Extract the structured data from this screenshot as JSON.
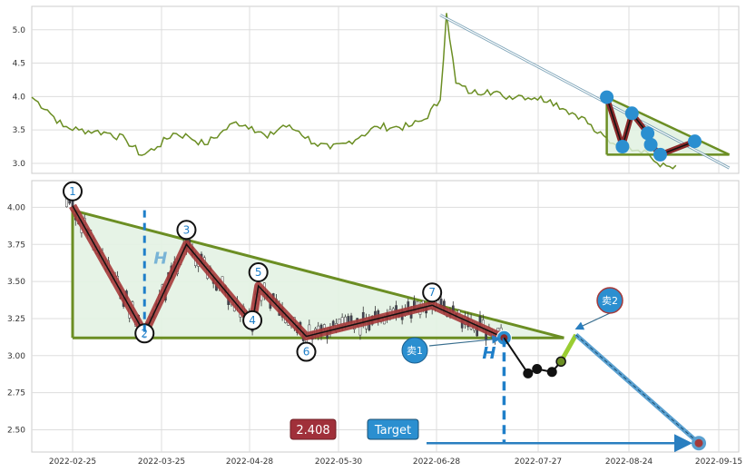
{
  "chart_data": [
    {
      "type": "line",
      "panel": "overview",
      "ylim": [
        2.85,
        5.35
      ],
      "y_ticks": [
        "3.0",
        "3.5",
        "4.0",
        "4.5",
        "5.0"
      ],
      "y_tick_values": [
        3.0,
        3.5,
        4.0,
        4.5,
        5.0
      ],
      "grid": true,
      "series": [
        {
          "color": "#6b8e23",
          "x": [
            0,
            5,
            10,
            15,
            20,
            25,
            30,
            35,
            40,
            45,
            50,
            55,
            60,
            65,
            70,
            75,
            80,
            85,
            90,
            95,
            100,
            105,
            110,
            115,
            120,
            125,
            130,
            132,
            135,
            140,
            145,
            150,
            155,
            160,
            165,
            170,
            175,
            180,
            185,
            190,
            195,
            200,
            205
          ],
          "values": [
            3.99,
            3.8,
            3.55,
            3.5,
            3.48,
            3.45,
            3.35,
            3.12,
            3.25,
            3.45,
            3.4,
            3.28,
            3.45,
            3.62,
            3.55,
            3.38,
            3.57,
            3.48,
            3.3,
            3.22,
            3.3,
            3.42,
            3.55,
            3.54,
            3.55,
            3.66,
            3.95,
            5.25,
            4.2,
            4.05,
            4.1,
            4.0,
            4.02,
            3.98,
            3.95,
            3.8,
            3.7,
            3.45,
            3.3,
            3.25,
            3.2,
            2.95,
            2.97
          ]
        }
      ],
      "overlay": {
        "pattern_points": [
          [
            183,
            3.99
          ],
          [
            188,
            3.25
          ],
          [
            191,
            3.75
          ],
          [
            196,
            3.45
          ],
          [
            197,
            3.28
          ],
          [
            200,
            3.13
          ],
          [
            211,
            3.33
          ]
        ],
        "upper_line": [
          [
            183,
            3.99
          ],
          [
            222,
            3.13
          ]
        ],
        "lower_line": [
          [
            183,
            3.13
          ],
          [
            222,
            3.13
          ]
        ],
        "arrow_from": [
          130,
          5.22
        ],
        "arrow_to": [
          222,
          2.93
        ]
      }
    },
    {
      "type": "line",
      "panel": "detail",
      "ylim": [
        2.35,
        4.18
      ],
      "y_ticks": [
        "2.50",
        "2.75",
        "3.00",
        "3.25",
        "3.50",
        "3.75",
        "4.00"
      ],
      "y_tick_values": [
        2.5,
        2.75,
        3.0,
        3.25,
        3.5,
        3.75,
        4.0
      ],
      "x_ticks": [
        "2022-02-25",
        "2022-03-25",
        "2022-04-28",
        "2022-05-30",
        "2022-06-28",
        "2022-07-27",
        "2022-08-24",
        "2022-09-15"
      ],
      "grid": true,
      "zigzag": {
        "labels": [
          "1",
          "2",
          "3",
          "4",
          "5",
          "6",
          "7"
        ],
        "points": [
          [
            0,
            4.01
          ],
          [
            24,
            3.15
          ],
          [
            38,
            3.75
          ],
          [
            60,
            3.22
          ],
          [
            62,
            3.47
          ],
          [
            78,
            3.13
          ],
          [
            120,
            3.34
          ]
        ],
        "end_point": [
          144,
          3.12
        ]
      },
      "triangle": {
        "upper": [
          [
            0,
            3.98
          ],
          [
            164,
            3.12
          ]
        ],
        "lower": [
          [
            0,
            3.12
          ],
          [
            164,
            3.12
          ]
        ]
      },
      "height_marker_label": "H",
      "sell1_label": "卖1",
      "sell2_label": "卖2",
      "target_label": "Target",
      "target_value_label": "2.408",
      "target_value": 2.408,
      "post_breakout": [
        [
          144,
          3.12
        ],
        [
          152,
          2.88
        ],
        [
          155,
          2.91
        ],
        [
          160,
          2.89
        ],
        [
          163,
          2.96
        ]
      ],
      "sell2_point": [
        168,
        3.14
      ],
      "target_point": [
        209,
        2.41
      ]
    }
  ]
}
